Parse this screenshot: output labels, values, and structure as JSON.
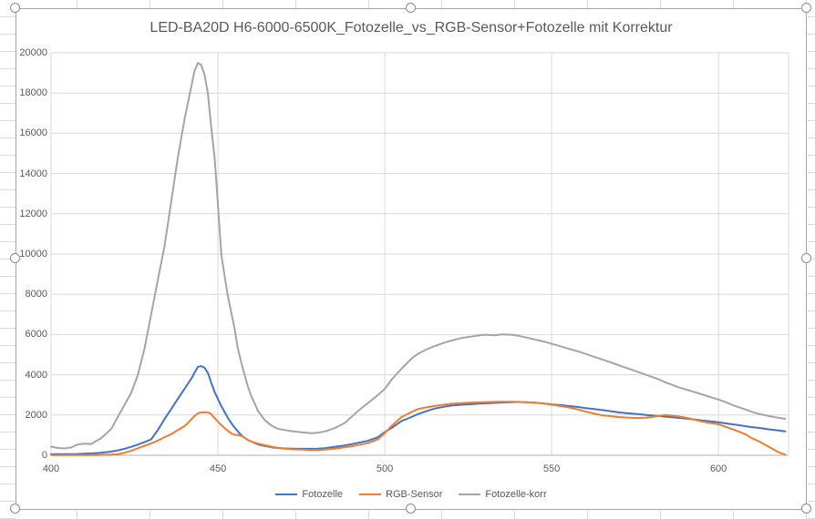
{
  "chart_data": {
    "type": "line",
    "title": "LED-BA20D H6-6000-6500K_Fotozelle_vs_RGB-Sensor+Fotozelle mit Korrektur",
    "xlabel": "",
    "ylabel": "",
    "xlim": [
      400,
      621
    ],
    "ylim": [
      0,
      20000
    ],
    "x_ticks": [
      400,
      450,
      500,
      550,
      600
    ],
    "y_ticks": [
      0,
      2000,
      4000,
      6000,
      8000,
      10000,
      12000,
      14000,
      16000,
      18000,
      20000
    ],
    "grid": true,
    "legend_position": "bottom",
    "x": [
      400,
      402,
      404,
      406,
      408,
      410,
      412,
      415,
      418,
      420,
      422,
      424,
      426,
      428,
      430,
      432,
      434,
      436,
      438,
      440,
      441,
      442,
      443,
      444,
      445,
      446,
      447,
      448,
      449,
      450,
      451,
      452,
      453,
      454,
      455,
      456,
      457,
      458,
      459,
      460,
      462,
      464,
      466,
      468,
      470,
      472,
      475,
      478,
      480,
      482,
      485,
      488,
      490,
      492,
      495,
      498,
      500,
      502,
      505,
      508,
      510,
      513,
      515,
      518,
      520,
      523,
      525,
      528,
      530,
      533,
      535,
      538,
      540,
      543,
      545,
      548,
      550,
      553,
      555,
      558,
      560,
      563,
      565,
      568,
      570,
      572,
      574,
      576,
      578,
      580,
      582,
      584,
      586,
      588,
      590,
      592,
      595,
      598,
      600,
      602,
      605,
      608,
      610,
      612,
      615,
      618,
      620
    ],
    "series": [
      {
        "name": "Fotozelle",
        "color": "#4472C4",
        "values": [
          50,
          55,
          55,
          60,
          65,
          75,
          90,
          120,
          180,
          240,
          320,
          420,
          530,
          650,
          790,
          1250,
          1800,
          2300,
          2800,
          3300,
          3550,
          3800,
          4100,
          4400,
          4430,
          4350,
          4100,
          3600,
          3150,
          2800,
          2450,
          2150,
          1850,
          1600,
          1380,
          1180,
          1000,
          870,
          760,
          680,
          540,
          460,
          400,
          360,
          340,
          330,
          320,
          320,
          330,
          350,
          420,
          490,
          550,
          620,
          720,
          900,
          1150,
          1350,
          1700,
          1900,
          2050,
          2220,
          2320,
          2420,
          2470,
          2510,
          2530,
          2560,
          2580,
          2600,
          2620,
          2640,
          2650,
          2630,
          2610,
          2570,
          2530,
          2490,
          2450,
          2400,
          2350,
          2290,
          2250,
          2180,
          2130,
          2100,
          2070,
          2040,
          2010,
          1980,
          1950,
          1920,
          1890,
          1860,
          1830,
          1790,
          1730,
          1680,
          1640,
          1590,
          1520,
          1450,
          1400,
          1360,
          1290,
          1230,
          1190
        ]
      },
      {
        "name": "RGB-Sensor",
        "color": "#ED7D31",
        "values": [
          10,
          10,
          10,
          10,
          10,
          10,
          15,
          20,
          30,
          50,
          120,
          220,
          350,
          470,
          590,
          730,
          900,
          1050,
          1250,
          1450,
          1600,
          1780,
          1950,
          2080,
          2130,
          2140,
          2130,
          2050,
          1850,
          1680,
          1500,
          1350,
          1220,
          1080,
          1020,
          1010,
          960,
          870,
          760,
          680,
          580,
          500,
          430,
          370,
          330,
          300,
          280,
          260,
          260,
          280,
          330,
          400,
          450,
          510,
          600,
          800,
          1100,
          1450,
          1900,
          2150,
          2300,
          2400,
          2450,
          2520,
          2560,
          2590,
          2610,
          2630,
          2640,
          2650,
          2660,
          2660,
          2650,
          2630,
          2610,
          2560,
          2510,
          2440,
          2380,
          2270,
          2180,
          2060,
          1990,
          1930,
          1900,
          1880,
          1860,
          1850,
          1870,
          1900,
          1950,
          2000,
          1970,
          1930,
          1880,
          1800,
          1680,
          1590,
          1540,
          1420,
          1250,
          1050,
          850,
          700,
          430,
          150,
          30
        ]
      },
      {
        "name": "Fotozelle-korr",
        "color": "#A5A5A5",
        "values": [
          430,
          360,
          340,
          390,
          540,
          580,
          560,
          850,
          1300,
          1900,
          2500,
          3100,
          4000,
          5300,
          7000,
          8700,
          10400,
          12600,
          14800,
          16700,
          17500,
          18300,
          19100,
          19500,
          19400,
          18900,
          18000,
          16300,
          14800,
          12500,
          10000,
          8900,
          7900,
          7100,
          6300,
          5300,
          4600,
          4000,
          3400,
          2950,
          2200,
          1750,
          1480,
          1310,
          1260,
          1200,
          1140,
          1100,
          1120,
          1180,
          1350,
          1600,
          1900,
          2200,
          2600,
          3000,
          3300,
          3750,
          4300,
          4800,
          5050,
          5300,
          5430,
          5600,
          5700,
          5830,
          5880,
          5950,
          5990,
          5960,
          6010,
          5990,
          5940,
          5830,
          5750,
          5640,
          5540,
          5400,
          5300,
          5160,
          5050,
          4880,
          4770,
          4600,
          4480,
          4360,
          4250,
          4130,
          4020,
          3900,
          3780,
          3630,
          3500,
          3380,
          3280,
          3180,
          3030,
          2870,
          2770,
          2650,
          2450,
          2280,
          2160,
          2060,
          1950,
          1860,
          1810
        ]
      }
    ],
    "colors": {
      "gridline": "#D9D9D9",
      "axis_line": "#BFBFBF",
      "text": "#595959"
    }
  }
}
